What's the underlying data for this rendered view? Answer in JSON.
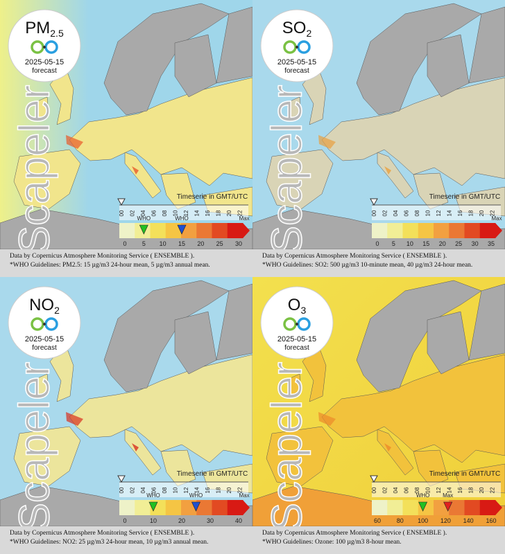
{
  "panels": [
    {
      "pollutant": "PM",
      "subscript": "2.5",
      "date": "2025-05-15",
      "status": "forecast",
      "brand": "Scapeler",
      "timeserie": "Timeserie in GMT/UTC",
      "hours": [
        "00",
        "02",
        "04",
        "06",
        "08",
        "10",
        "12",
        "14",
        "16",
        "18",
        "20",
        "22"
      ],
      "scale": [
        0,
        5,
        10,
        15,
        20,
        25,
        30
      ],
      "max_label": "Max",
      "markers": [
        {
          "label": "WHO",
          "value": 5,
          "color": "#22c022"
        },
        {
          "label": "WHO",
          "value": 15,
          "color": "#1f4fd0"
        }
      ],
      "footer": [
        "Data by Copernicus Atmosphere Monitoring Service ( ENSEMBLE ).",
        "*WHO Guidelines: PM2.5: 15 µg/m3 24-hour mean, 5 µg/m3 annual mean."
      ]
    },
    {
      "pollutant": "SO",
      "subscript": "2",
      "date": "2025-05-15",
      "status": "forecast",
      "brand": "Scapeler",
      "timeserie": "Timeserie in GMT/UTC",
      "hours": [
        "00",
        "02",
        "04",
        "06",
        "08",
        "10",
        "12",
        "14",
        "16",
        "18",
        "20",
        "22"
      ],
      "scale": [
        0,
        5,
        10,
        15,
        20,
        25,
        30,
        35
      ],
      "max_label": "Max",
      "markers": [],
      "footer": [
        "Data by Copernicus Atmosphere Monitoring Service ( ENSEMBLE ).",
        "*WHO Guidelines: SO2: 500 µg/m3 10-minute mean, 40 µg/m3 24-hour mean."
      ]
    },
    {
      "pollutant": "NO",
      "subscript": "2",
      "date": "2025-05-15",
      "status": "forecast",
      "brand": "Scapeler",
      "timeserie": "Timeserie in GMT/UTC",
      "hours": [
        "00",
        "02",
        "04",
        "06",
        "08",
        "10",
        "12",
        "14",
        "16",
        "18",
        "20",
        "22"
      ],
      "scale": [
        0,
        10,
        20,
        30,
        40
      ],
      "max_label": "Max",
      "markers": [
        {
          "label": "WHO",
          "value": 10,
          "color": "#22c022"
        },
        {
          "label": "WHO",
          "value": 25,
          "color": "#1f4fd0"
        }
      ],
      "footer": [
        "Data by Copernicus Atmosphere Monitoring Service ( ENSEMBLE ).",
        "*WHO Guidelines: NO2: 25 µg/m3 24-hour mean, 10 µg/m3 annual mean."
      ]
    },
    {
      "pollutant": "O",
      "subscript": "3",
      "date": "2025-05-15",
      "status": "forecast",
      "brand": "Scapeler",
      "timeserie": "Timeserie in GMT/UTC",
      "hours": [
        "00",
        "02",
        "04",
        "06",
        "08",
        "10",
        "12",
        "14",
        "16",
        "18",
        "20",
        "22"
      ],
      "scale": [
        60,
        80,
        100,
        120,
        140,
        160
      ],
      "markers": [
        {
          "label": "WHO",
          "value": 100,
          "color": "#22c022"
        },
        {
          "label": "Max",
          "value": 122,
          "color": "#e02020"
        }
      ],
      "footer": [
        "Data by Copernicus Atmosphere Monitoring Service ( ENSEMBLE ).",
        "*WHO Guidelines: Ozone: 100 µg/m3 8-hour mean."
      ]
    }
  ]
}
